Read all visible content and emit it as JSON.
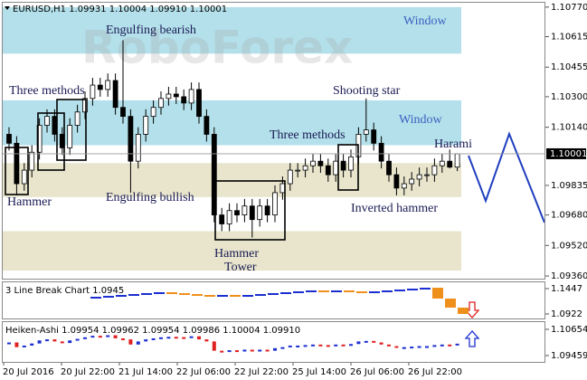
{
  "chart_data": {
    "type": "candlestick",
    "header": "EURUSD,H1  1.09931 1.10004 1.09910 1.10001",
    "watermark": "RoboForex",
    "ylim": [
      1.09346,
      1.10793
    ],
    "yticks": [
      {
        "value": 1.1077,
        "label": "1.10770"
      },
      1.10615,
      1.10455,
      {
        "value": 1.103,
        "label": "1.10300"
      },
      {
        "value": 1.1014,
        "label": "1.10140"
      },
      1.09835,
      {
        "value": 1.0968,
        "label": "1.09680"
      },
      {
        "value": 1.0952,
        "label": "1.09520"
      },
      {
        "value": 1.0936,
        "label": "1.09360"
      }
    ],
    "up_color": "#ffffff",
    "down_color": "#000000",
    "candles": {
      "open": [
        1.10103,
        1.10056,
        1.09844,
        1.09915,
        1.10009,
        1.1015,
        1.10197,
        1.10103,
        1.10032,
        1.1015,
        1.1022,
        1.10291,
        1.10361,
        1.10338,
        1.10385,
        1.10244,
        1.10197,
        1.09962,
        1.10103,
        1.10197,
        1.10244,
        1.10291,
        1.10314,
        1.103,
        1.10267,
        1.10338,
        1.10197,
        1.10103,
        1.0968,
        1.09633,
        1.09703,
        1.0968,
        1.09727,
        1.09656,
        1.09727,
        1.0968,
        1.09797,
        1.09844,
        1.09915,
        1.09915,
        1.09938,
        1.09962,
        1.09938,
        1.09891,
        1.09962,
        1.09915,
        1.09985,
        1.10103,
        1.10126,
        1.10056,
        1.09962,
        1.09891,
        1.09821,
        1.09844,
        1.09868,
        1.09891,
        1.09891,
        1.09938,
        1.09962,
        1.09931
      ],
      "high": [
        1.1014,
        1.10093,
        1.09952,
        1.10046,
        1.10187,
        1.10234,
        1.10234,
        1.1014,
        1.10187,
        1.10258,
        1.10328,
        1.10399,
        1.10399,
        1.10422,
        1.10422,
        1.10596,
        1.10234,
        1.1014,
        1.10234,
        1.10281,
        1.10328,
        1.10352,
        1.10352,
        1.10338,
        1.10375,
        1.10375,
        1.10234,
        1.1014,
        1.09717,
        1.09741,
        1.09741,
        1.09764,
        1.09764,
        1.09764,
        1.09764,
        1.09835,
        1.09882,
        1.09952,
        1.09952,
        1.09976,
        1.09999,
        1.09999,
        1.09976,
        1.09999,
        1.09999,
        1.10023,
        1.1014,
        1.10291,
        1.10164,
        1.10093,
        1.09999,
        1.09929,
        1.09882,
        1.09905,
        1.09929,
        1.09929,
        1.09976,
        1.09999,
        1.10023,
        1.10004
      ],
      "low": [
        1.10018,
        1.09783,
        1.09807,
        1.09877,
        1.09971,
        1.10112,
        1.10065,
        1.09995,
        1.09995,
        1.10112,
        1.10183,
        1.10253,
        1.103,
        1.103,
        1.10206,
        1.10159,
        1.09797,
        1.09924,
        1.10065,
        1.10159,
        1.10206,
        1.10253,
        1.10262,
        1.1023,
        1.1023,
        1.10159,
        1.10065,
        1.09642,
        1.09595,
        1.09595,
        1.09642,
        1.09642,
        1.09562,
        1.09619,
        1.09642,
        1.09642,
        1.0976,
        1.09807,
        1.09877,
        1.09877,
        1.09901,
        1.09901,
        1.09854,
        1.09854,
        1.09877,
        1.09877,
        1.09948,
        1.10065,
        1.10018,
        1.09924,
        1.09854,
        1.09783,
        1.09783,
        1.09807,
        1.0983,
        1.09854,
        1.09854,
        1.09901,
        1.09924,
        1.0991
      ],
      "close": [
        1.10056,
        1.09844,
        1.09915,
        1.10009,
        1.1015,
        1.10197,
        1.10103,
        1.10032,
        1.1015,
        1.1022,
        1.10291,
        1.10361,
        1.10338,
        1.10385,
        1.10244,
        1.10197,
        1.09962,
        1.10103,
        1.10197,
        1.10244,
        1.10291,
        1.10314,
        1.103,
        1.10267,
        1.10338,
        1.10197,
        1.10103,
        1.0968,
        1.09633,
        1.09703,
        1.0968,
        1.09727,
        1.09656,
        1.09727,
        1.0968,
        1.09797,
        1.09844,
        1.09915,
        1.09915,
        1.09938,
        1.09962,
        1.09938,
        1.09891,
        1.09962,
        1.09915,
        1.09985,
        1.10103,
        1.10126,
        1.10056,
        1.09962,
        1.09891,
        1.09821,
        1.09844,
        1.09868,
        1.09891,
        1.09891,
        1.09938,
        1.09962,
        1.09931,
        1.10001
      ]
    },
    "zones": [
      {
        "from": 1.10526,
        "to": 1.1077,
        "color": "#b3e0ea"
      },
      {
        "from": 1.10046,
        "to": 1.10281,
        "color": "#b3e0ea"
      },
      {
        "from": 1.09774,
        "to": 1.09952,
        "color": "#e8e5cc"
      },
      {
        "from": 1.09388,
        "to": 1.09595,
        "color": "#e8e5cc"
      }
    ],
    "annotations": [
      "Engulfing bearish",
      "Three methods",
      "Shooting star",
      "Window",
      "Window",
      "Three methods",
      "Harami",
      "Hammer",
      "Engulfing bullish",
      "Inverted hammer",
      "Hammer",
      "Tower"
    ],
    "x_labels": [
      "20 Jul 2016",
      "20 Jul 22:00",
      "21 Jul 14:00",
      "22 Jul 06:00",
      "22 Jul 22:00",
      "25 Jul 14:00",
      "26 Jul 06:00",
      "26 Jul 22:00"
    ],
    "panels": [
      {
        "type": "line_break",
        "title": "3 Line Break Chart 1.0945",
        "ylim": [
          1.08283,
          1.15783
        ],
        "yticks": [
          1.1447,
          1.0922
        ],
        "up_color": "#1c2fd0",
        "down_color": "#f0901c",
        "values": [
          1.12783,
          1.1297,
          1.13158,
          1.13345,
          1.13533,
          1.1372,
          1.13533,
          1.13345,
          1.13158,
          1.1297,
          1.13158,
          1.1297,
          1.13158,
          1.13345,
          1.13533,
          1.1372,
          1.13908,
          1.14095,
          1.13908,
          1.14095,
          1.13908,
          1.1372,
          1.13908,
          1.14095,
          1.14283,
          1.1447,
          1.14658,
          1.12408,
          1.10533,
          1.0922
        ]
      },
      {
        "type": "heiken_ashi",
        "title": "Heiken-Ashi 1.09954 1.09962 1.09954 1.09986 1.10004 1.09910",
        "ylim": [
          1.09171,
          1.10984
        ],
        "yticks": [
          1.10654,
          1.09459
        ],
        "up_color": "#1c2fd0",
        "down_color": "#e02020",
        "values": [
          1.10056,
          1.09844,
          1.09915,
          1.10009,
          1.1015,
          1.10197,
          1.10103,
          1.10032,
          1.1015,
          1.1022,
          1.10291,
          1.10361,
          1.10338,
          1.10385,
          1.10244,
          1.10197,
          1.09962,
          1.10103,
          1.10197,
          1.10244,
          1.10291,
          1.10314,
          1.103,
          1.10267,
          1.10338,
          1.10197,
          1.10103,
          1.0968,
          1.09633,
          1.09703,
          1.0968,
          1.09727,
          1.09656,
          1.09727,
          1.0968,
          1.09797,
          1.09844,
          1.09915,
          1.09915,
          1.09938,
          1.09962,
          1.09938,
          1.09891,
          1.09962,
          1.09915,
          1.09985,
          1.10103,
          1.10126,
          1.10056,
          1.09962,
          1.09891,
          1.09821,
          1.09844,
          1.09868,
          1.09891,
          1.09891,
          1.09938,
          1.09962,
          1.09931,
          1.10001
        ]
      }
    ]
  }
}
